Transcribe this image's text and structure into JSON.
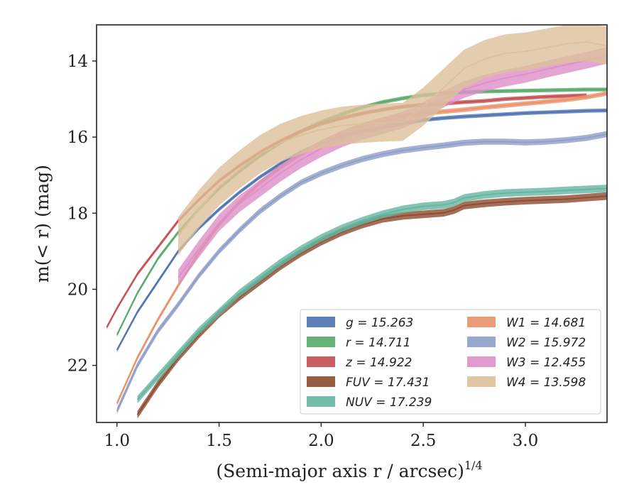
{
  "chart_data": {
    "type": "line",
    "title": "",
    "xlabel": "(Semi-major axis r / arcsec)",
    "xlabel_sup": "1/4",
    "ylabel": "m(< r) (mag)",
    "xlim": [
      0.9,
      3.4
    ],
    "ylim": [
      23.5,
      13.05
    ],
    "y_inverted": true,
    "grid": false,
    "legend_position": "lower-right",
    "xticks": [
      "1.0",
      "1.5",
      "2.0",
      "2.5",
      "3.0"
    ],
    "yticks": [
      "14",
      "16",
      "18",
      "20",
      "22"
    ],
    "series": [
      {
        "name": "g = 15.263",
        "color": "#4c72b0",
        "band": 0.05,
        "x": [
          1.0,
          1.1,
          1.2,
          1.3,
          1.4,
          1.5,
          1.6,
          1.7,
          1.8,
          1.9,
          2.0,
          2.1,
          2.2,
          2.3,
          2.4,
          2.5,
          2.6,
          2.7,
          2.8,
          2.9,
          3.0,
          3.1,
          3.2,
          3.3,
          3.4
        ],
        "y": [
          21.6,
          20.6,
          19.8,
          19.0,
          18.4,
          17.9,
          17.45,
          17.05,
          16.7,
          16.4,
          16.15,
          15.98,
          15.85,
          15.75,
          15.65,
          15.55,
          15.5,
          15.46,
          15.43,
          15.4,
          15.37,
          15.35,
          15.33,
          15.31,
          15.3
        ]
      },
      {
        "name": "r = 14.711",
        "color": "#55a868",
        "band": 0.05,
        "x": [
          1.0,
          1.1,
          1.2,
          1.3,
          1.4,
          1.5,
          1.6,
          1.7,
          1.8,
          1.9,
          2.0,
          2.1,
          2.2,
          2.3,
          2.4,
          2.5,
          2.6,
          2.7,
          2.8,
          2.9,
          3.0,
          3.1,
          3.2,
          3.3,
          3.4
        ],
        "y": [
          21.2,
          20.1,
          19.2,
          18.5,
          17.9,
          17.35,
          16.9,
          16.5,
          16.15,
          15.85,
          15.6,
          15.4,
          15.22,
          15.08,
          14.98,
          14.9,
          14.85,
          14.82,
          14.8,
          14.79,
          14.78,
          14.77,
          14.76,
          14.75,
          14.75
        ]
      },
      {
        "name": "z = 14.922",
        "color": "#c44e52",
        "band": 0.05,
        "x": [
          0.95,
          1.0,
          1.1,
          1.2,
          1.3,
          1.4,
          1.5,
          1.6,
          1.7,
          1.8,
          1.9,
          2.0,
          2.1,
          2.2,
          2.3,
          2.4,
          2.5,
          2.6,
          2.7,
          2.8,
          2.9,
          3.0,
          3.1,
          3.2,
          3.3
        ],
        "y": [
          21.0,
          20.5,
          19.6,
          18.9,
          18.2,
          17.65,
          17.15,
          16.75,
          16.4,
          16.1,
          15.85,
          15.65,
          15.5,
          15.38,
          15.28,
          15.2,
          15.15,
          15.12,
          15.08,
          15.05,
          15.0,
          14.97,
          14.94,
          14.92,
          14.9
        ]
      },
      {
        "name": "FUV = 17.431",
        "color": "#8c4b2e",
        "band": 0.1,
        "x": [
          1.1,
          1.2,
          1.3,
          1.4,
          1.5,
          1.6,
          1.7,
          1.8,
          1.9,
          2.0,
          2.1,
          2.2,
          2.3,
          2.4,
          2.5,
          2.6,
          2.65,
          2.7,
          2.8,
          2.9,
          3.0,
          3.1,
          3.2,
          3.4
        ],
        "y": [
          23.3,
          22.5,
          21.8,
          21.2,
          20.65,
          20.2,
          19.8,
          19.4,
          19.05,
          18.75,
          18.5,
          18.3,
          18.15,
          18.07,
          18.03,
          17.99,
          17.92,
          17.8,
          17.74,
          17.7,
          17.67,
          17.65,
          17.63,
          17.55
        ]
      },
      {
        "name": "NUV = 17.239",
        "color": "#64b5a0",
        "band": 0.1,
        "x": [
          1.1,
          1.2,
          1.3,
          1.4,
          1.5,
          1.6,
          1.7,
          1.8,
          1.9,
          2.0,
          2.1,
          2.2,
          2.3,
          2.4,
          2.5,
          2.6,
          2.65,
          2.7,
          2.8,
          2.9,
          3.0,
          3.1,
          3.2,
          3.4
        ],
        "y": [
          22.9,
          22.3,
          21.7,
          21.1,
          20.6,
          20.1,
          19.7,
          19.3,
          18.95,
          18.65,
          18.4,
          18.2,
          18.03,
          17.9,
          17.82,
          17.78,
          17.72,
          17.6,
          17.52,
          17.47,
          17.45,
          17.43,
          17.4,
          17.35
        ]
      },
      {
        "name": "W1 = 14.681",
        "color": "#e8916a",
        "band": 0.06,
        "x": [
          1.0,
          1.1,
          1.2,
          1.3,
          1.4,
          1.5,
          1.6,
          1.7,
          1.8,
          1.9,
          2.0,
          2.1,
          2.2,
          2.3,
          2.4,
          2.5,
          2.6,
          2.7,
          2.8,
          2.9,
          3.0,
          3.1,
          3.2,
          3.3,
          3.4
        ],
        "y": [
          23.0,
          21.8,
          20.8,
          19.9,
          19.05,
          18.3,
          17.7,
          17.2,
          16.8,
          16.45,
          16.15,
          15.9,
          15.7,
          15.55,
          15.45,
          15.38,
          15.33,
          15.28,
          15.22,
          15.17,
          15.12,
          15.07,
          15.02,
          14.95,
          14.85
        ]
      },
      {
        "name": "W2 = 15.972",
        "color": "#8d9dc6",
        "band": 0.08,
        "x": [
          1.0,
          1.1,
          1.2,
          1.3,
          1.4,
          1.5,
          1.6,
          1.7,
          1.8,
          1.9,
          2.0,
          2.1,
          2.2,
          2.3,
          2.4,
          2.5,
          2.6,
          2.7,
          2.8,
          2.9,
          3.0,
          3.1,
          3.2,
          3.3,
          3.4
        ],
        "y": [
          23.2,
          22.0,
          21.1,
          20.4,
          19.65,
          19.0,
          18.45,
          17.95,
          17.55,
          17.2,
          16.95,
          16.75,
          16.58,
          16.45,
          16.35,
          16.28,
          16.22,
          16.15,
          16.12,
          16.12,
          16.14,
          16.12,
          16.08,
          16.02,
          15.92
        ]
      },
      {
        "name": "W3 = 12.455",
        "color": "#dd8fc8",
        "band": 0.22,
        "x": [
          1.3,
          1.4,
          1.5,
          1.6,
          1.7,
          1.8,
          1.9,
          2.0,
          2.1,
          2.2,
          2.3,
          2.4,
          2.5,
          2.6,
          2.7,
          2.8,
          2.9,
          3.0,
          3.1,
          3.2,
          3.3,
          3.4
        ],
        "y": [
          19.7,
          18.95,
          18.25,
          17.75,
          17.35,
          16.95,
          16.6,
          16.3,
          16.05,
          15.85,
          15.7,
          15.55,
          15.3,
          15.0,
          14.75,
          14.58,
          14.45,
          14.35,
          14.22,
          14.1,
          13.98,
          13.85
        ]
      },
      {
        "name": "W4 = 13.598",
        "color": "#dcc09a",
        "band": 0.5,
        "x": [
          1.3,
          1.4,
          1.5,
          1.6,
          1.7,
          1.8,
          1.9,
          2.0,
          2.1,
          2.2,
          2.3,
          2.4,
          2.5,
          2.6,
          2.7,
          2.8,
          2.9,
          3.0,
          3.1,
          3.2,
          3.3,
          3.4
        ],
        "y": [
          18.6,
          17.9,
          17.3,
          16.85,
          16.45,
          16.15,
          15.95,
          15.8,
          15.7,
          15.65,
          15.62,
          15.6,
          15.2,
          14.7,
          14.2,
          13.95,
          13.8,
          13.75,
          13.65,
          13.55,
          13.5,
          13.6
        ]
      }
    ]
  }
}
